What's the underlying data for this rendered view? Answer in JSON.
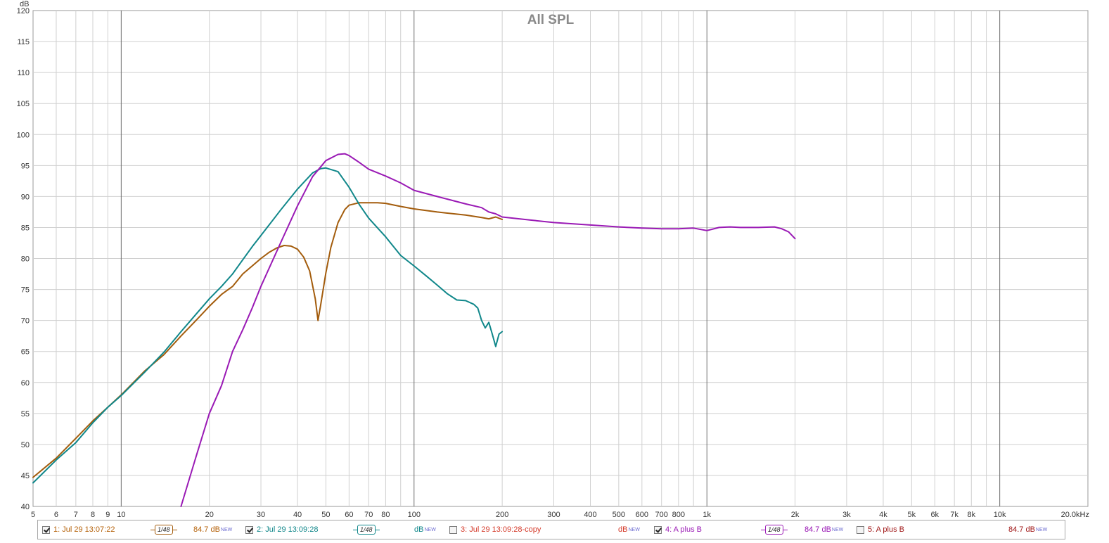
{
  "chart_data": {
    "type": "line",
    "title": "All SPL",
    "ylabel": "dB",
    "xscale": "log",
    "xlim": [
      5,
      20000
    ],
    "ylim": [
      40,
      120
    ],
    "y_ticks": [
      40,
      45,
      50,
      55,
      60,
      65,
      70,
      75,
      80,
      85,
      90,
      95,
      100,
      105,
      110,
      115,
      120
    ],
    "x_ticks": [
      {
        "v": 5,
        "l": "5"
      },
      {
        "v": 6,
        "l": "6"
      },
      {
        "v": 7,
        "l": "7"
      },
      {
        "v": 8,
        "l": "8"
      },
      {
        "v": 9,
        "l": "9"
      },
      {
        "v": 10,
        "l": "10"
      },
      {
        "v": 20,
        "l": "20"
      },
      {
        "v": 30,
        "l": "30"
      },
      {
        "v": 40,
        "l": "40"
      },
      {
        "v": 50,
        "l": "50"
      },
      {
        "v": 60,
        "l": "60"
      },
      {
        "v": 70,
        "l": "70"
      },
      {
        "v": 80,
        "l": "80"
      },
      {
        "v": 100,
        "l": "100"
      },
      {
        "v": 200,
        "l": "200"
      },
      {
        "v": 300,
        "l": "300"
      },
      {
        "v": 400,
        "l": "400"
      },
      {
        "v": 500,
        "l": "500"
      },
      {
        "v": 600,
        "l": "600"
      },
      {
        "v": 700,
        "l": "700"
      },
      {
        "v": 800,
        "l": "800"
      },
      {
        "v": 1000,
        "l": "1k"
      },
      {
        "v": 2000,
        "l": "2k"
      },
      {
        "v": 3000,
        "l": "3k"
      },
      {
        "v": 4000,
        "l": "4k"
      },
      {
        "v": 5000,
        "l": "5k"
      },
      {
        "v": 6000,
        "l": "6k"
      },
      {
        "v": 7000,
        "l": "7k"
      },
      {
        "v": 8000,
        "l": "8k"
      },
      {
        "v": 10000,
        "l": "10k"
      },
      {
        "v": 20000,
        "l": "20.0kHz"
      }
    ],
    "grid": true,
    "series": [
      {
        "name": "1: Jul 29 13:07:22",
        "color": "#a35c0c",
        "x": [
          5,
          6,
          7,
          8,
          9,
          10,
          12,
          14,
          16,
          18,
          20,
          22,
          24,
          26,
          28,
          30,
          32,
          34,
          36,
          38,
          40,
          42,
          44,
          46,
          47,
          48,
          50,
          52,
          55,
          58,
          60,
          65,
          70,
          75,
          80,
          90,
          100,
          120,
          150,
          170,
          180,
          190,
          200
        ],
        "y": [
          44.7,
          47.8,
          51,
          53.8,
          56,
          58,
          61.8,
          64.5,
          67.5,
          70,
          72.3,
          74.2,
          75.5,
          77.5,
          78.8,
          80,
          81,
          81.7,
          82.1,
          82,
          81.5,
          80.2,
          78,
          73.5,
          70,
          72.5,
          77.7,
          81.8,
          85.8,
          87.9,
          88.6,
          89,
          89,
          89,
          88.9,
          88.4,
          88,
          87.5,
          87,
          86.6,
          86.4,
          86.7,
          86.3
        ]
      },
      {
        "name": "2: Jul 29 13:09:28",
        "color": "#10878a",
        "x": [
          5,
          6,
          7,
          8,
          9,
          10,
          12,
          14,
          16,
          18,
          20,
          22,
          24,
          26,
          28,
          30,
          35,
          40,
          45,
          48,
          50,
          55,
          60,
          65,
          70,
          80,
          90,
          100,
          110,
          120,
          130,
          140,
          150,
          160,
          165,
          170,
          175,
          180,
          185,
          190,
          195,
          200
        ],
        "y": [
          43.8,
          47.5,
          50.3,
          53.5,
          56,
          57.9,
          61.6,
          64.9,
          68.2,
          71,
          73.5,
          75.5,
          77.5,
          79.8,
          81.9,
          83.7,
          87.8,
          91.2,
          93.8,
          94.5,
          94.6,
          94,
          91.5,
          88.7,
          86.5,
          83.5,
          80.5,
          78.8,
          77.2,
          75.7,
          74.3,
          73.3,
          73.2,
          72.6,
          72,
          70,
          68.8,
          69.7,
          67.8,
          65.8,
          67.8,
          68.2
        ]
      },
      {
        "name": "4: A plus B",
        "color": "#9a1ab5",
        "x": [
          16,
          18,
          20,
          22,
          24,
          26,
          28,
          30,
          35,
          40,
          45,
          50,
          55,
          58,
          60,
          65,
          70,
          80,
          90,
          100,
          120,
          150,
          170,
          180,
          190,
          200,
          250,
          300,
          400,
          500,
          600,
          700,
          800,
          900,
          1000,
          1100,
          1200,
          1300,
          1500,
          1700,
          1800,
          1900,
          2000
        ],
        "y": [
          40,
          48,
          55,
          59.5,
          65,
          68.5,
          72,
          75.5,
          82.5,
          88.5,
          93.2,
          95.8,
          96.8,
          96.9,
          96.6,
          95.5,
          94.4,
          93.3,
          92.2,
          91,
          90,
          88.8,
          88.2,
          87.5,
          87.2,
          86.7,
          86.2,
          85.8,
          85.4,
          85.1,
          84.9,
          84.8,
          84.8,
          84.9,
          84.5,
          85,
          85.1,
          85,
          85,
          85.1,
          84.8,
          84.3,
          83.2
        ]
      }
    ]
  },
  "legend": {
    "items": [
      {
        "label": "1: Jul 29 13:07:22",
        "checked": true,
        "color": "#b5620a",
        "smooth_label": "1/48",
        "smooth_color": "#a35c0c",
        "level_value": "84.7 dB",
        "level_sup": "NEW"
      },
      {
        "label": "2: Jul 29 13:09:28",
        "checked": true,
        "color": "#10878a",
        "smooth_label": "1/48",
        "smooth_color": "#10878a",
        "level_value": "dB",
        "level_sup": "NEW"
      },
      {
        "label": "3: Jul 29 13:09:28-copy",
        "checked": false,
        "color": "#d43a2a",
        "smooth_label": "",
        "smooth_color": "",
        "level_value": "dB",
        "level_sup": "NEW"
      },
      {
        "label": "4: A plus B",
        "checked": true,
        "color": "#9a1ab5",
        "smooth_label": "1/48",
        "smooth_color": "#9a1ab5",
        "level_value": "84.7 dB",
        "level_sup": "NEW"
      },
      {
        "label": "5: A plus B",
        "checked": false,
        "color": "#a01818",
        "smooth_label": "",
        "smooth_color": "",
        "level_value": "84.7 dB",
        "level_sup": "NEW"
      }
    ]
  }
}
